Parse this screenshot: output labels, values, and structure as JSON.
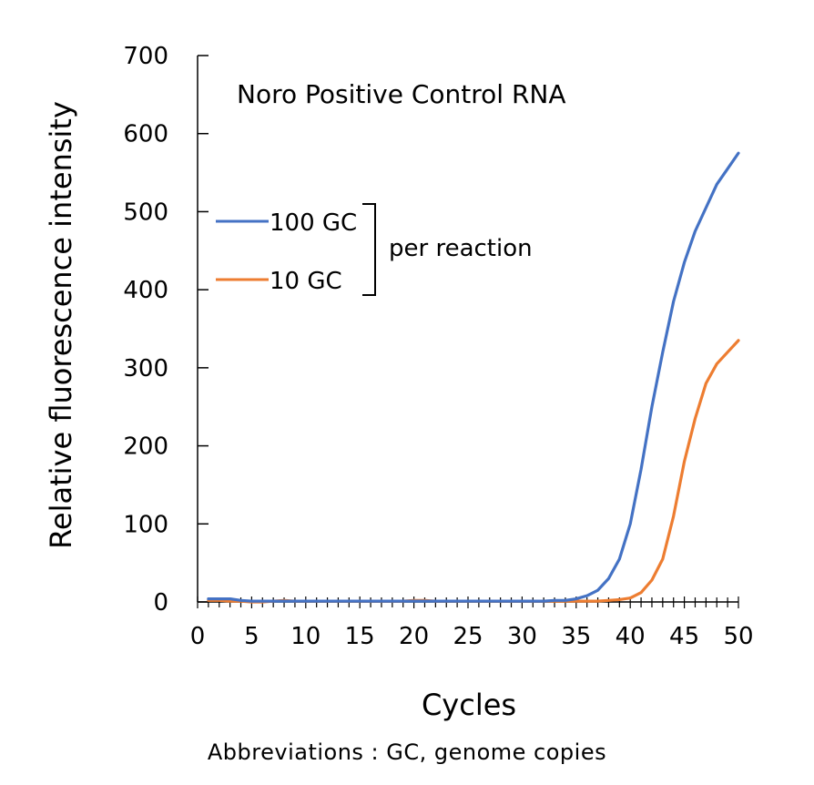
{
  "chart_data": {
    "type": "line",
    "title": "Noro Positive Control RNA",
    "xlabel": "Cycles",
    "ylabel": "Relative fluorescence intensity",
    "xlim": [
      0,
      50
    ],
    "ylim": [
      0,
      700
    ],
    "x_ticks": [
      0,
      5,
      10,
      15,
      20,
      25,
      30,
      35,
      40,
      45,
      50
    ],
    "y_ticks": [
      0,
      100,
      200,
      300,
      400,
      500,
      600,
      700
    ],
    "legend_position": "left",
    "legend_group_label": "per reaction",
    "grid": false,
    "x": [
      1,
      2,
      3,
      4,
      5,
      6,
      7,
      8,
      9,
      10,
      11,
      12,
      13,
      14,
      15,
      16,
      17,
      18,
      19,
      20,
      21,
      22,
      23,
      24,
      25,
      26,
      27,
      28,
      29,
      30,
      31,
      32,
      33,
      34,
      35,
      36,
      37,
      38,
      39,
      40,
      41,
      42,
      43,
      44,
      45,
      46,
      47,
      48,
      49,
      50
    ],
    "series": [
      {
        "name": "100 GC",
        "color": "#4472C4",
        "values": [
          4,
          4,
          4,
          2,
          1,
          1,
          1,
          1,
          1,
          1,
          1,
          1,
          1,
          1,
          1,
          1,
          1,
          1,
          1,
          1,
          1,
          1,
          1,
          1,
          1,
          1,
          1,
          1,
          1,
          1,
          1,
          1,
          2,
          2,
          4,
          8,
          15,
          30,
          55,
          100,
          170,
          250,
          320,
          385,
          435,
          475,
          505,
          535,
          555,
          575
        ]
      },
      {
        "name": "10 GC",
        "color": "#ED7D31",
        "values": [
          2,
          2,
          1,
          1,
          0,
          0,
          1,
          2,
          1,
          1,
          1,
          1,
          1,
          1,
          1,
          1,
          1,
          1,
          1,
          2,
          2,
          1,
          1,
          1,
          1,
          1,
          1,
          1,
          1,
          1,
          1,
          1,
          1,
          1,
          1,
          1,
          1,
          2,
          3,
          5,
          12,
          28,
          55,
          110,
          180,
          235,
          280,
          305,
          320,
          335
        ]
      }
    ]
  },
  "footnote": "Abbreviations : GC, genome copies"
}
